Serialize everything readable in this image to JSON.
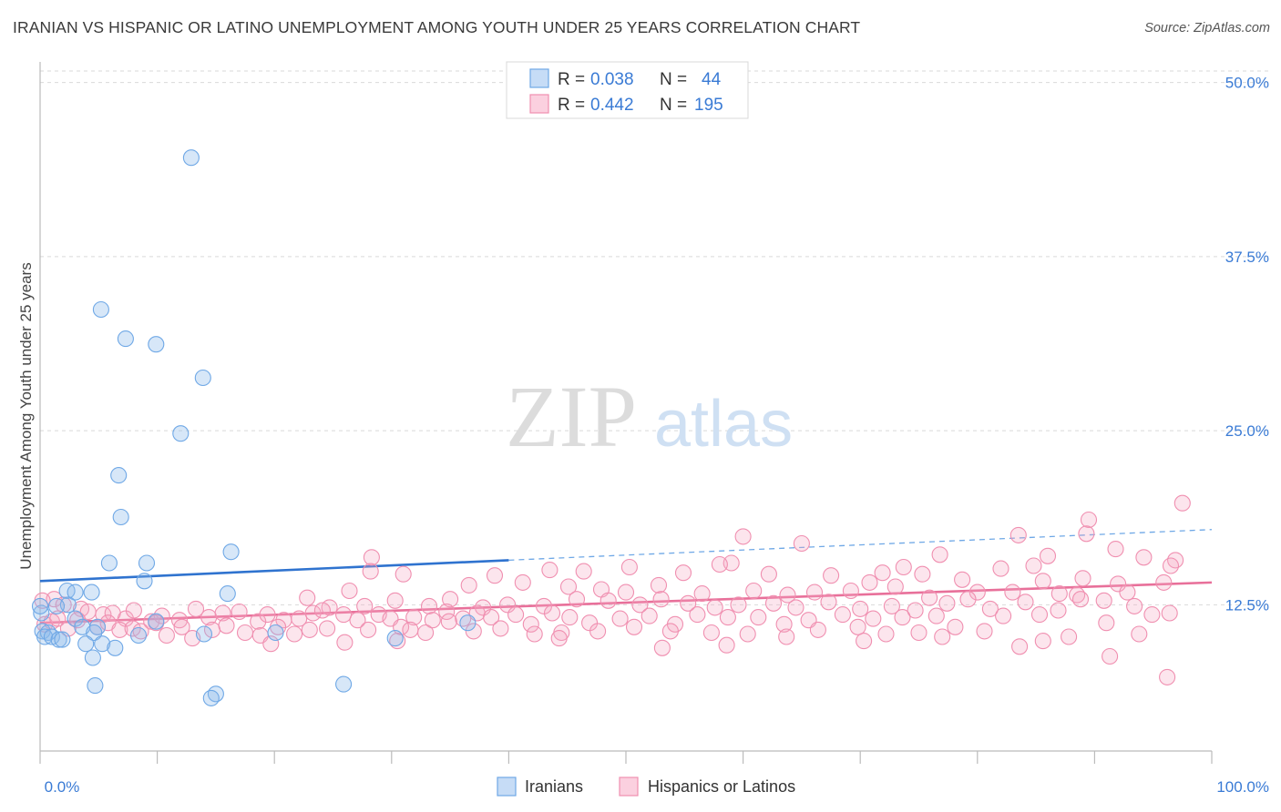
{
  "title": "IRANIAN VS HISPANIC OR LATINO UNEMPLOYMENT AMONG YOUTH UNDER 25 YEARS CORRELATION CHART",
  "source": "Source: ZipAtlas.com",
  "watermark": {
    "zip": "ZIP",
    "atlas": "atlas"
  },
  "legend_box": {
    "rows": [
      {
        "r_label": "R =",
        "r_value": "0.038",
        "n_label": "N =",
        "n_value": "44",
        "color": "#6fa8e6"
      },
      {
        "r_label": "R =",
        "r_value": "0.442",
        "n_label": "N =",
        "n_value": "195",
        "color": "#f08fb0"
      }
    ]
  },
  "chart_data": {
    "type": "scatter",
    "title": "IRANIAN VS HISPANIC OR LATINO UNEMPLOYMENT AMONG YOUTH UNDER 25 YEARS CORRELATION CHART",
    "xlabel": "",
    "ylabel": "Unemployment Among Youth under 25 years",
    "xlim": [
      0,
      100
    ],
    "ylim": [
      2,
      52
    ],
    "x_tick_labels": [
      "0.0%",
      "100.0%"
    ],
    "y_ticks": [
      12.5,
      25.0,
      37.5,
      50.0
    ],
    "y_tick_labels": [
      "12.5%",
      "25.0%",
      "37.5%",
      "50.0%"
    ],
    "grid": true,
    "legend_position": "bottom",
    "series": [
      {
        "name": "Iranians",
        "color": "#6fa8e6",
        "trend": {
          "x0": 0,
          "y0": 14.2,
          "x1": 40,
          "y1": 15.7,
          "dashed_to": 100,
          "y_end": 17.9
        },
        "points": [
          [
            12.9,
            44.6
          ],
          [
            5.2,
            33.7
          ],
          [
            7.3,
            31.6
          ],
          [
            9.9,
            31.2
          ],
          [
            13.9,
            28.8
          ],
          [
            12.0,
            24.8
          ],
          [
            6.7,
            21.8
          ],
          [
            6.9,
            18.8
          ],
          [
            16.3,
            16.3
          ],
          [
            5.9,
            15.5
          ],
          [
            9.1,
            15.5
          ],
          [
            8.9,
            14.2
          ],
          [
            2.3,
            13.5
          ],
          [
            4.4,
            13.4
          ],
          [
            3.0,
            13.4
          ],
          [
            16.0,
            13.3
          ],
          [
            2.4,
            12.5
          ],
          [
            1.4,
            12.4
          ],
          [
            9.9,
            11.3
          ],
          [
            3.0,
            11.5
          ],
          [
            3.6,
            10.9
          ],
          [
            4.9,
            10.9
          ],
          [
            0.2,
            10.6
          ],
          [
            0.7,
            10.5
          ],
          [
            4.6,
            10.5
          ],
          [
            20.1,
            10.5
          ],
          [
            14.0,
            10.4
          ],
          [
            8.4,
            10.3
          ],
          [
            0.4,
            10.2
          ],
          [
            1.0,
            10.2
          ],
          [
            1.6,
            10.0
          ],
          [
            1.9,
            10.0
          ],
          [
            3.9,
            9.7
          ],
          [
            5.3,
            9.7
          ],
          [
            6.4,
            9.4
          ],
          [
            4.5,
            8.7
          ],
          [
            30.3,
            10.1
          ],
          [
            36.5,
            11.2
          ],
          [
            4.7,
            6.7
          ],
          [
            15.0,
            6.1
          ],
          [
            14.6,
            5.8
          ],
          [
            25.9,
            6.8
          ],
          [
            0.1,
            11.9
          ],
          [
            0.0,
            12.4
          ]
        ]
      },
      {
        "name": "Hispanics or Latinos",
        "color": "#f08fb0",
        "trend": {
          "x0": 0,
          "y0": 11.2,
          "x1": 100,
          "y1": 14.1
        },
        "points": [
          [
            97.5,
            19.8
          ],
          [
            89.5,
            18.6
          ],
          [
            89.3,
            17.6
          ],
          [
            83.5,
            17.5
          ],
          [
            60.0,
            17.4
          ],
          [
            65.0,
            16.9
          ],
          [
            82.0,
            15.1
          ],
          [
            76.8,
            16.1
          ],
          [
            86.0,
            16.0
          ],
          [
            91.8,
            16.5
          ],
          [
            94.2,
            15.9
          ],
          [
            96.9,
            15.7
          ],
          [
            59.0,
            15.5
          ],
          [
            73.7,
            15.2
          ],
          [
            84.8,
            15.3
          ],
          [
            50.3,
            15.2
          ],
          [
            28.3,
            15.9
          ],
          [
            58.0,
            15.4
          ],
          [
            28.2,
            14.9
          ],
          [
            38.8,
            14.6
          ],
          [
            43.5,
            15.0
          ],
          [
            46.4,
            14.9
          ],
          [
            54.9,
            14.8
          ],
          [
            62.2,
            14.7
          ],
          [
            67.5,
            14.6
          ],
          [
            71.9,
            14.8
          ],
          [
            75.3,
            14.7
          ],
          [
            78.7,
            14.3
          ],
          [
            85.6,
            14.2
          ],
          [
            89.0,
            14.4
          ],
          [
            92.0,
            14.0
          ],
          [
            95.9,
            14.1
          ],
          [
            96.5,
            15.3
          ],
          [
            31.0,
            14.7
          ],
          [
            26.4,
            13.5
          ],
          [
            36.6,
            13.9
          ],
          [
            41.2,
            14.1
          ],
          [
            45.1,
            13.8
          ],
          [
            47.9,
            13.6
          ],
          [
            50.0,
            13.4
          ],
          [
            52.8,
            13.9
          ],
          [
            56.5,
            13.3
          ],
          [
            60.9,
            13.5
          ],
          [
            63.8,
            13.2
          ],
          [
            66.1,
            13.4
          ],
          [
            69.2,
            13.5
          ],
          [
            70.8,
            14.1
          ],
          [
            73.0,
            13.8
          ],
          [
            75.9,
            13.0
          ],
          [
            80.0,
            13.4
          ],
          [
            83.0,
            13.4
          ],
          [
            87.0,
            13.3
          ],
          [
            88.5,
            13.2
          ],
          [
            92.8,
            13.4
          ],
          [
            22.8,
            13.0
          ],
          [
            24.7,
            12.3
          ],
          [
            27.7,
            12.4
          ],
          [
            30.3,
            12.8
          ],
          [
            33.2,
            12.4
          ],
          [
            35.0,
            12.9
          ],
          [
            37.8,
            12.3
          ],
          [
            39.9,
            12.5
          ],
          [
            43.0,
            12.4
          ],
          [
            45.8,
            12.9
          ],
          [
            48.5,
            12.8
          ],
          [
            51.2,
            12.5
          ],
          [
            53.0,
            12.9
          ],
          [
            55.3,
            12.6
          ],
          [
            57.6,
            12.3
          ],
          [
            59.6,
            12.5
          ],
          [
            62.6,
            12.6
          ],
          [
            64.5,
            12.3
          ],
          [
            67.3,
            12.7
          ],
          [
            70.0,
            12.2
          ],
          [
            72.7,
            12.4
          ],
          [
            74.7,
            12.1
          ],
          [
            77.4,
            12.6
          ],
          [
            79.2,
            12.9
          ],
          [
            81.1,
            12.2
          ],
          [
            84.1,
            12.7
          ],
          [
            86.9,
            12.1
          ],
          [
            88.8,
            12.9
          ],
          [
            90.8,
            12.8
          ],
          [
            93.4,
            12.4
          ],
          [
            1.2,
            12.9
          ],
          [
            2.0,
            12.5
          ],
          [
            3.5,
            12.2
          ],
          [
            4.1,
            12.0
          ],
          [
            5.4,
            11.8
          ],
          [
            6.2,
            11.9
          ],
          [
            7.3,
            11.5
          ],
          [
            8.0,
            12.1
          ],
          [
            9.5,
            11.3
          ],
          [
            10.4,
            11.7
          ],
          [
            11.9,
            11.4
          ],
          [
            13.3,
            12.2
          ],
          [
            14.4,
            11.6
          ],
          [
            15.6,
            11.9
          ],
          [
            17.0,
            12.0
          ],
          [
            18.6,
            11.3
          ],
          [
            19.4,
            11.8
          ],
          [
            20.8,
            11.4
          ],
          [
            22.1,
            11.5
          ],
          [
            23.3,
            11.9
          ],
          [
            24.1,
            12.1
          ],
          [
            25.9,
            11.8
          ],
          [
            27.1,
            11.4
          ],
          [
            28.9,
            11.8
          ],
          [
            29.9,
            11.5
          ],
          [
            31.9,
            11.6
          ],
          [
            33.5,
            11.4
          ],
          [
            34.7,
            12.0
          ],
          [
            36.1,
            11.5
          ],
          [
            37.3,
            11.9
          ],
          [
            38.5,
            11.6
          ],
          [
            40.6,
            11.8
          ],
          [
            41.9,
            11.1
          ],
          [
            43.7,
            11.9
          ],
          [
            45.2,
            11.6
          ],
          [
            46.9,
            11.2
          ],
          [
            49.5,
            11.5
          ],
          [
            52.0,
            11.7
          ],
          [
            54.2,
            11.1
          ],
          [
            56.1,
            11.8
          ],
          [
            58.7,
            11.6
          ],
          [
            61.3,
            11.6
          ],
          [
            63.5,
            11.1
          ],
          [
            65.6,
            11.4
          ],
          [
            68.5,
            11.8
          ],
          [
            71.1,
            11.5
          ],
          [
            73.6,
            11.6
          ],
          [
            76.5,
            11.7
          ],
          [
            78.1,
            10.9
          ],
          [
            82.2,
            11.7
          ],
          [
            85.3,
            11.8
          ],
          [
            91.0,
            11.2
          ],
          [
            94.9,
            11.8
          ],
          [
            96.4,
            11.9
          ],
          [
            0.2,
            12.8
          ],
          [
            0.4,
            11.1
          ],
          [
            1.0,
            11.3
          ],
          [
            1.5,
            11.5
          ],
          [
            2.4,
            10.8
          ],
          [
            3.2,
            11.4
          ],
          [
            4.9,
            10.9
          ],
          [
            5.8,
            11.2
          ],
          [
            6.8,
            10.7
          ],
          [
            7.9,
            10.8
          ],
          [
            8.6,
            10.6
          ],
          [
            9.9,
            11.2
          ],
          [
            10.8,
            10.3
          ],
          [
            12.1,
            10.9
          ],
          [
            13.0,
            10.1
          ],
          [
            14.7,
            10.7
          ],
          [
            15.9,
            11.0
          ],
          [
            17.5,
            10.5
          ],
          [
            18.8,
            10.3
          ],
          [
            20.3,
            10.9
          ],
          [
            21.7,
            10.4
          ],
          [
            23.0,
            10.7
          ],
          [
            24.5,
            10.8
          ],
          [
            26.0,
            9.8
          ],
          [
            28.0,
            10.7
          ],
          [
            30.8,
            10.9
          ],
          [
            31.6,
            10.7
          ],
          [
            32.9,
            10.5
          ],
          [
            34.9,
            11.3
          ],
          [
            37.0,
            10.6
          ],
          [
            39.3,
            10.8
          ],
          [
            42.2,
            10.4
          ],
          [
            44.5,
            10.5
          ],
          [
            47.6,
            10.6
          ],
          [
            50.7,
            10.9
          ],
          [
            53.8,
            10.6
          ],
          [
            57.3,
            10.5
          ],
          [
            60.4,
            10.4
          ],
          [
            63.7,
            10.2
          ],
          [
            66.4,
            10.7
          ],
          [
            69.8,
            10.9
          ],
          [
            72.2,
            10.4
          ],
          [
            75.0,
            10.5
          ],
          [
            77.0,
            10.2
          ],
          [
            80.6,
            10.6
          ],
          [
            83.6,
            9.5
          ],
          [
            87.8,
            10.2
          ],
          [
            93.8,
            10.4
          ],
          [
            19.7,
            9.7
          ],
          [
            30.5,
            9.9
          ],
          [
            44.3,
            10.1
          ],
          [
            58.6,
            9.6
          ],
          [
            70.3,
            9.9
          ],
          [
            85.6,
            9.9
          ],
          [
            91.3,
            8.8
          ],
          [
            53.1,
            9.4
          ],
          [
            96.2,
            7.3
          ]
        ]
      }
    ]
  },
  "bottom_legend": [
    {
      "label": "Iranians",
      "color": "#6fa8e6"
    },
    {
      "label": "Hispanics or Latinos",
      "color": "#f08fb0"
    }
  ]
}
